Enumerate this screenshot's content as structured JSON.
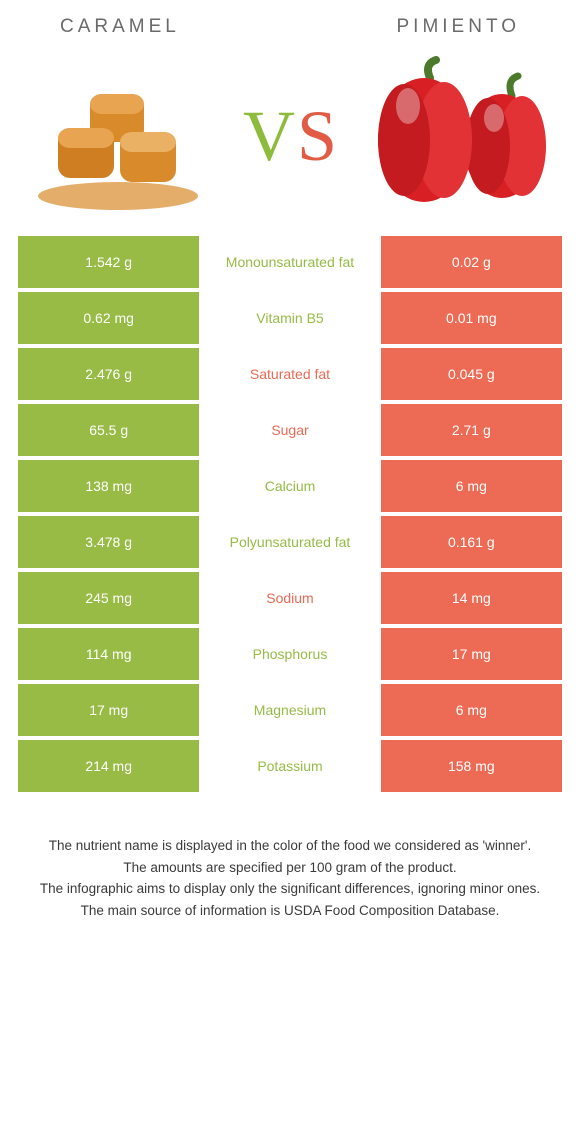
{
  "header": {
    "left": "CARAMEL",
    "right": "PIMIENTO"
  },
  "vs": {
    "v": "V",
    "s": "S"
  },
  "colors": {
    "left": "#97bb45",
    "right": "#ed6a54",
    "vs_v": "#8dbb3b",
    "vs_s": "#e25b44",
    "header_text": "#6a6a6a"
  },
  "rows": [
    {
      "left": "1.542 g",
      "label": "Monounsaturated fat",
      "right": "0.02 g",
      "winner": "left"
    },
    {
      "left": "0.62 mg",
      "label": "Vitamin B5",
      "right": "0.01 mg",
      "winner": "left"
    },
    {
      "left": "2.476 g",
      "label": "Saturated fat",
      "right": "0.045 g",
      "winner": "right"
    },
    {
      "left": "65.5 g",
      "label": "Sugar",
      "right": "2.71 g",
      "winner": "right"
    },
    {
      "left": "138 mg",
      "label": "Calcium",
      "right": "6 mg",
      "winner": "left"
    },
    {
      "left": "3.478 g",
      "label": "Polyunsaturated fat",
      "right": "0.161 g",
      "winner": "left"
    },
    {
      "left": "245 mg",
      "label": "Sodium",
      "right": "14 mg",
      "winner": "right"
    },
    {
      "left": "114 mg",
      "label": "Phosphorus",
      "right": "17 mg",
      "winner": "left"
    },
    {
      "left": "17 mg",
      "label": "Magnesium",
      "right": "6 mg",
      "winner": "left"
    },
    {
      "left": "214 mg",
      "label": "Potassium",
      "right": "158 mg",
      "winner": "left"
    }
  ],
  "footer": {
    "l1": "The nutrient name is displayed in the color of the food we considered as 'winner'.",
    "l2": "The amounts are specified per 100 gram of the product.",
    "l3": "The infographic aims to display only the significant differences, ignoring minor ones.",
    "l4": "The main source of information is USDA Food Composition Database."
  }
}
